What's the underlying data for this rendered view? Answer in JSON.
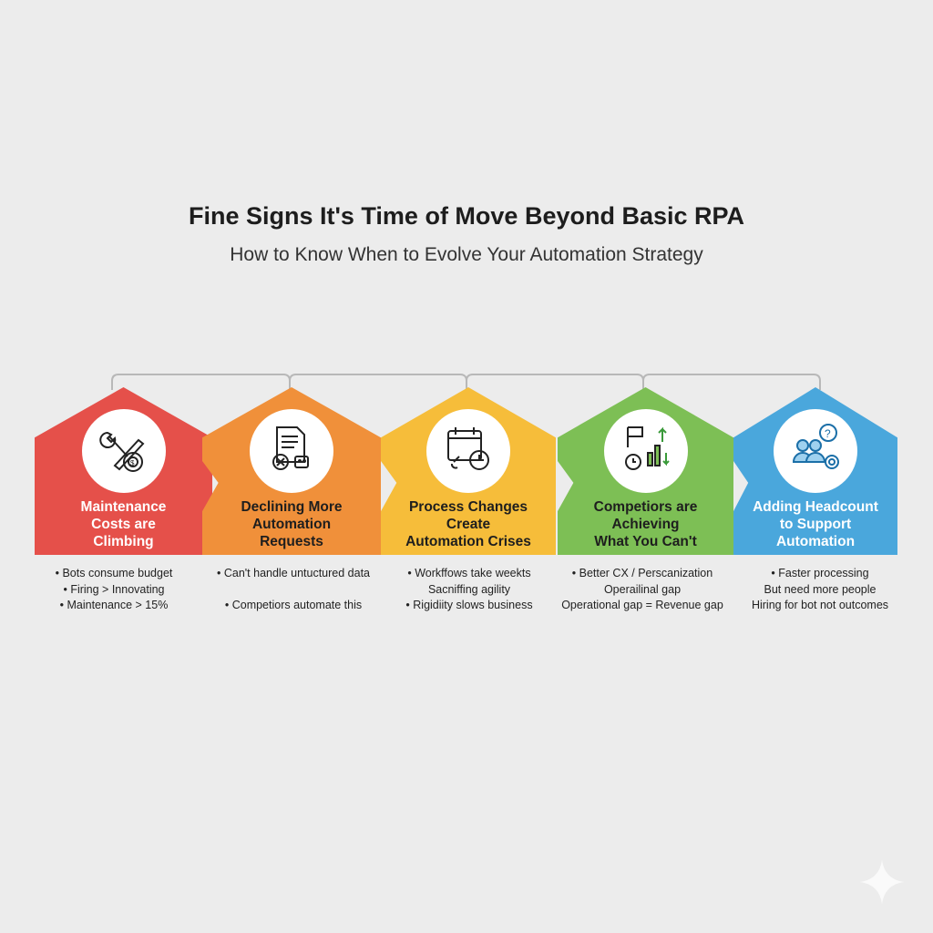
{
  "title": "Fine Signs It's Time of Move Beyond Basic RPA",
  "subtitle": "How to Know When to Evolve Your Automation Strategy",
  "cards": [
    {
      "title": [
        "Maintenance",
        "Costs are",
        "Climbing"
      ],
      "color": "#e5504a",
      "text_color": "#ffffff",
      "icon": "wrench-gear-dollar-icon",
      "bullets": [
        "• Bots consume budget",
        "• Firing > Innovating",
        "• Maintenance > 15%"
      ]
    },
    {
      "title": [
        "Declining More",
        "Automation",
        "Requests"
      ],
      "color": "#f0903a",
      "text_color": "#1e1e1e",
      "icon": "document-reject-robot-icon",
      "bullets": [
        "• Can't handle untuctured data",
        "",
        "• Competiors automate this"
      ]
    },
    {
      "title": [
        "Process Changes",
        "Create",
        "Automation Crises"
      ],
      "color": "#f6bd3a",
      "text_color": "#1e1e1e",
      "icon": "calendar-clock-link-icon",
      "bullets": [
        "• Workffows take weekts",
        "Sacniffing agility",
        "• Rigidiity slows business"
      ]
    },
    {
      "title": [
        "Competiors are",
        "Achieving",
        "What You Can't"
      ],
      "color": "#7dbf55",
      "text_color": "#1e1e1e",
      "icon": "flag-chart-stopwatch-icon",
      "bullets": [
        "• Better CX / Perscanization",
        "Operailinal gap",
        "Operational gap = Revenue gap"
      ]
    },
    {
      "title": [
        "Adding Headcount",
        "to Support",
        "Automation"
      ],
      "color": "#4aa7dc",
      "text_color": "#ffffff",
      "icon": "people-question-gear-icon",
      "bullets": [
        "• Faster processing",
        "But need more people",
        "Hiring for bot not outcomes"
      ]
    }
  ]
}
